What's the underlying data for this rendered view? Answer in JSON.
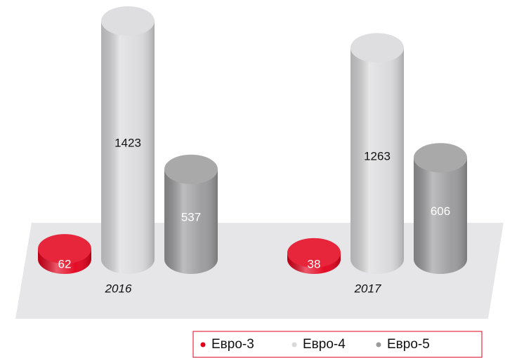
{
  "chart_data": {
    "type": "cylinder",
    "categories": [
      "2016",
      "2017"
    ],
    "series": [
      {
        "name": "Евро-3",
        "color": "#e3001b",
        "values": [
          62,
          38
        ]
      },
      {
        "name": "Евро-4",
        "color": "#d9d9db",
        "values": [
          1423,
          1263
        ]
      },
      {
        "name": "Евро-5",
        "color": "#9a9a9c",
        "values": [
          537,
          606
        ]
      }
    ],
    "legend": "bottom-right"
  }
}
